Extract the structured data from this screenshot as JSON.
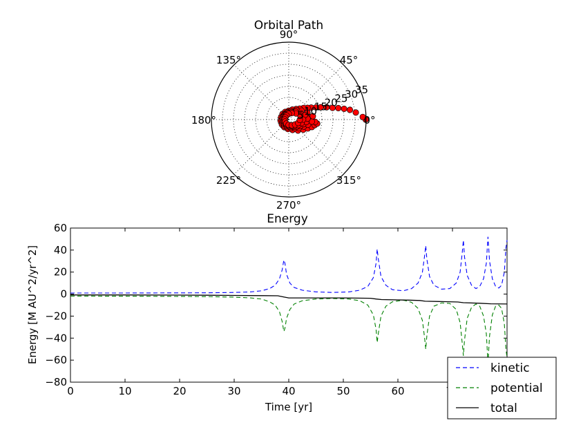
{
  "chart_data": [
    {
      "type": "scatter",
      "projection": "polar",
      "title": "Orbital Path",
      "angle_tick_labels": [
        "0°",
        "45°",
        "90°",
        "135°",
        "180°",
        "225°",
        "270°",
        "315°"
      ],
      "radial_tick_labels": [
        "5",
        "10",
        "15",
        "20",
        "25",
        "30",
        "35"
      ],
      "rlim": [
        0,
        35
      ],
      "grid": true,
      "marker_color": "#ff0000",
      "marker_edge_color": "#000000",
      "points_deg_r": [
        [
          0,
          34.8
        ],
        [
          2,
          33.5
        ],
        [
          6,
          30.5
        ],
        [
          9,
          28.0
        ],
        [
          11,
          25.5
        ],
        [
          13,
          23.0
        ],
        [
          15,
          20.5
        ],
        [
          18,
          18.0
        ],
        [
          21,
          15.5
        ],
        [
          24,
          13.5
        ],
        [
          28,
          11.5
        ],
        [
          32,
          10.0
        ],
        [
          38,
          8.5
        ],
        [
          45,
          7.0
        ],
        [
          55,
          5.8
        ],
        [
          70,
          4.8
        ],
        [
          90,
          4.0
        ],
        [
          115,
          3.8
        ],
        [
          140,
          3.7
        ],
        [
          165,
          3.6
        ],
        [
          190,
          3.7
        ],
        [
          215,
          3.8
        ],
        [
          240,
          4.0
        ],
        [
          265,
          4.3
        ],
        [
          290,
          5.0
        ],
        [
          310,
          6.5
        ],
        [
          325,
          8.0
        ],
        [
          335,
          9.5
        ],
        [
          342,
          11.0
        ],
        [
          348,
          12.0
        ],
        [
          352,
          13.0
        ],
        [
          355,
          12.0
        ],
        [
          5,
          9.0
        ],
        [
          12,
          7.5
        ],
        [
          25,
          6.0
        ],
        [
          40,
          5.0
        ],
        [
          60,
          4.2
        ],
        [
          85,
          3.5
        ],
        [
          110,
          3.2
        ],
        [
          135,
          3.0
        ],
        [
          160,
          3.0
        ],
        [
          185,
          3.1
        ],
        [
          210,
          3.2
        ],
        [
          235,
          3.4
        ],
        [
          260,
          3.6
        ],
        [
          285,
          4.0
        ],
        [
          305,
          4.8
        ],
        [
          320,
          6.0
        ],
        [
          335,
          7.5
        ],
        [
          345,
          9.0
        ],
        [
          355,
          10.5
        ],
        [
          8,
          11.0
        ],
        [
          20,
          9.0
        ],
        [
          35,
          7.0
        ],
        [
          50,
          5.5
        ],
        [
          75,
          4.0
        ],
        [
          100,
          3.3
        ],
        [
          125,
          2.8
        ],
        [
          150,
          2.6
        ],
        [
          175,
          2.6
        ],
        [
          200,
          2.7
        ],
        [
          225,
          2.8
        ],
        [
          250,
          3.0
        ],
        [
          275,
          3.2
        ],
        [
          300,
          3.8
        ],
        [
          318,
          4.8
        ],
        [
          332,
          6.0
        ],
        [
          343,
          7.0
        ],
        [
          352,
          8.0
        ],
        [
          3,
          8.5
        ],
        [
          15,
          7.5
        ],
        [
          30,
          6.0
        ],
        [
          48,
          4.8
        ],
        [
          70,
          3.6
        ],
        [
          95,
          3.0
        ],
        [
          120,
          2.5
        ],
        [
          145,
          2.2
        ],
        [
          170,
          2.1
        ],
        [
          195,
          2.2
        ],
        [
          220,
          2.3
        ],
        [
          245,
          2.5
        ],
        [
          270,
          2.8
        ],
        [
          295,
          3.3
        ],
        [
          315,
          4.0
        ],
        [
          330,
          5.0
        ],
        [
          345,
          6.0
        ],
        [
          0,
          6.5
        ],
        [
          18,
          5.5
        ],
        [
          40,
          4.3
        ],
        [
          65,
          3.2
        ],
        [
          90,
          2.6
        ],
        [
          118,
          2.1
        ],
        [
          148,
          1.8
        ],
        [
          178,
          1.8
        ],
        [
          208,
          1.9
        ],
        [
          238,
          2.1
        ],
        [
          268,
          2.4
        ],
        [
          298,
          2.9
        ],
        [
          322,
          3.6
        ],
        [
          340,
          4.5
        ],
        [
          358,
          5.0
        ]
      ]
    },
    {
      "type": "line",
      "title": "Energy",
      "xlabel": "Time [yr]",
      "ylabel": "Energy  [M AU^2/yr^2]",
      "xlim": [
        0,
        80
      ],
      "ylim": [
        -80,
        60
      ],
      "x_ticks": [
        0,
        10,
        20,
        30,
        40,
        50,
        60,
        70
      ],
      "x_tick_labels": [
        "0",
        "10",
        "20",
        "30",
        "40",
        "50",
        "60",
        "70"
      ],
      "y_ticks": [
        -80,
        -60,
        -40,
        -20,
        0,
        20,
        40,
        60
      ],
      "y_tick_labels": [
        "−80",
        "−60",
        "−40",
        "−20",
        "0",
        "20",
        "40",
        "60"
      ],
      "legend_position": "lower-right",
      "series": [
        {
          "name": "kinetic",
          "color": "#0000ff",
          "style": "dashed",
          "points": [
            [
              0,
              1.0
            ],
            [
              10,
              1.0
            ],
            [
              20,
              1.1
            ],
            [
              25,
              1.2
            ],
            [
              30,
              1.5
            ],
            [
              33,
              2.0
            ],
            [
              35,
              3.0
            ],
            [
              36.5,
              5.0
            ],
            [
              37.5,
              8.0
            ],
            [
              38.3,
              14.0
            ],
            [
              38.8,
              22.0
            ],
            [
              39.1,
              31.0
            ],
            [
              39.3,
              28.0
            ],
            [
              39.6,
              18.0
            ],
            [
              40.2,
              10.0
            ],
            [
              41,
              6.0
            ],
            [
              42.5,
              3.5
            ],
            [
              45,
              2.0
            ],
            [
              48,
              1.5
            ],
            [
              51,
              2.0
            ],
            [
              53,
              3.5
            ],
            [
              54.5,
              7.0
            ],
            [
              55.5,
              15.0
            ],
            [
              56.0,
              28.0
            ],
            [
              56.2,
              41.0
            ],
            [
              56.4,
              32.0
            ],
            [
              56.9,
              16.0
            ],
            [
              57.8,
              8.0
            ],
            [
              59,
              4.0
            ],
            [
              61,
              3.0
            ],
            [
              62.5,
              5.0
            ],
            [
              63.7,
              10.0
            ],
            [
              64.5,
              20.0
            ],
            [
              64.9,
              35.0
            ],
            [
              65.1,
              44.0
            ],
            [
              65.3,
              32.0
            ],
            [
              65.8,
              16.0
            ],
            [
              66.6,
              8.0
            ],
            [
              68,
              4.5
            ],
            [
              69.5,
              5.0
            ],
            [
              70.7,
              10.0
            ],
            [
              71.4,
              20.0
            ],
            [
              71.8,
              38.0
            ],
            [
              72.0,
              49.0
            ],
            [
              72.2,
              34.0
            ],
            [
              72.7,
              17.0
            ],
            [
              73.5,
              8.0
            ],
            [
              74.3,
              5.0
            ],
            [
              75.0,
              7.0
            ],
            [
              75.7,
              14.0
            ],
            [
              76.2,
              28.0
            ],
            [
              76.5,
              52.0
            ],
            [
              76.8,
              30.0
            ],
            [
              77.3,
              14.0
            ],
            [
              77.9,
              7.0
            ],
            [
              78.5,
              5.5
            ],
            [
              79.0,
              8.0
            ],
            [
              79.5,
              20.0
            ],
            [
              79.8,
              42.0
            ],
            [
              80.0,
              49.0
            ]
          ]
        },
        {
          "name": "potential",
          "color": "#008000",
          "style": "dashed",
          "points": [
            [
              0,
              -1.8
            ],
            [
              10,
              -1.9
            ],
            [
              20,
              -2.1
            ],
            [
              25,
              -2.3
            ],
            [
              30,
              -2.8
            ],
            [
              33,
              -3.5
            ],
            [
              35,
              -4.5
            ],
            [
              36.5,
              -7.0
            ],
            [
              37.5,
              -10.0
            ],
            [
              38.3,
              -16.0
            ],
            [
              38.8,
              -25.0
            ],
            [
              39.1,
              -34.0
            ],
            [
              39.3,
              -31.0
            ],
            [
              39.6,
              -22.0
            ],
            [
              40.2,
              -14.0
            ],
            [
              41,
              -9.0
            ],
            [
              42.5,
              -6.0
            ],
            [
              45,
              -4.5
            ],
            [
              48,
              -4.0
            ],
            [
              51,
              -4.5
            ],
            [
              53,
              -6.0
            ],
            [
              54.5,
              -10.0
            ],
            [
              55.5,
              -19.0
            ],
            [
              56.0,
              -32.0
            ],
            [
              56.2,
              -44.0
            ],
            [
              56.4,
              -36.0
            ],
            [
              56.9,
              -20.0
            ],
            [
              57.8,
              -11.0
            ],
            [
              59,
              -7.0
            ],
            [
              61,
              -5.5
            ],
            [
              62.5,
              -7.5
            ],
            [
              63.7,
              -13.0
            ],
            [
              64.5,
              -24.0
            ],
            [
              64.9,
              -40.0
            ],
            [
              65.1,
              -50.0
            ],
            [
              65.3,
              -38.0
            ],
            [
              65.8,
              -20.0
            ],
            [
              66.6,
              -11.0
            ],
            [
              68,
              -8.0
            ],
            [
              69.5,
              -8.5
            ],
            [
              70.7,
              -14.0
            ],
            [
              71.4,
              -26.0
            ],
            [
              71.8,
              -45.0
            ],
            [
              72.0,
              -56.0
            ],
            [
              72.2,
              -42.0
            ],
            [
              72.7,
              -22.0
            ],
            [
              73.5,
              -12.0
            ],
            [
              74.3,
              -9.0
            ],
            [
              75.0,
              -11.0
            ],
            [
              75.7,
              -20.0
            ],
            [
              76.2,
              -36.0
            ],
            [
              76.5,
              -62.0
            ],
            [
              76.8,
              -38.0
            ],
            [
              77.3,
              -19.0
            ],
            [
              77.9,
              -11.0
            ],
            [
              78.5,
              -10.0
            ],
            [
              79.0,
              -13.0
            ],
            [
              79.5,
              -27.0
            ],
            [
              79.8,
              -50.0
            ],
            [
              80.0,
              -58.0
            ]
          ]
        },
        {
          "name": "total",
          "color": "#000000",
          "style": "solid",
          "points": [
            [
              0,
              -0.8
            ],
            [
              10,
              -0.8
            ],
            [
              20,
              -0.9
            ],
            [
              25,
              -1.0
            ],
            [
              30,
              -1.2
            ],
            [
              35,
              -1.4
            ],
            [
              38,
              -1.5
            ],
            [
              39,
              -2.5
            ],
            [
              40,
              -3.5
            ],
            [
              45,
              -3.5
            ],
            [
              50,
              -3.5
            ],
            [
              55,
              -3.8
            ],
            [
              56,
              -4.5
            ],
            [
              57,
              -5.0
            ],
            [
              62,
              -5.5
            ],
            [
              64,
              -5.8
            ],
            [
              65,
              -6.5
            ],
            [
              68,
              -6.8
            ],
            [
              71,
              -7.2
            ],
            [
              72,
              -7.8
            ],
            [
              75,
              -8.3
            ],
            [
              77,
              -8.8
            ],
            [
              80,
              -9.0
            ]
          ]
        }
      ]
    }
  ]
}
